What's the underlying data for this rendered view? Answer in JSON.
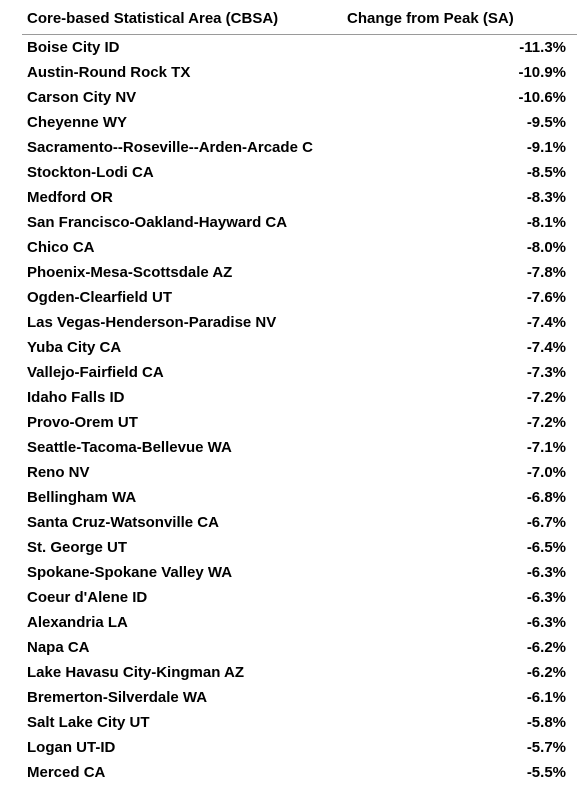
{
  "table": {
    "header": [
      "Core-based Statistical Area (CBSA)",
      "Change from Peak (SA)"
    ],
    "rows": [
      [
        "Boise City ID",
        "-11.3%"
      ],
      [
        "Austin-Round Rock TX",
        "-10.9%"
      ],
      [
        "Carson City NV",
        "-10.6%"
      ],
      [
        "Cheyenne WY",
        "-9.5%"
      ],
      [
        "Sacramento--Roseville--Arden-Arcade C",
        "-9.1%"
      ],
      [
        "Stockton-Lodi CA",
        "-8.5%"
      ],
      [
        "Medford OR",
        "-8.3%"
      ],
      [
        "San Francisco-Oakland-Hayward CA",
        "-8.1%"
      ],
      [
        "Chico CA",
        "-8.0%"
      ],
      [
        "Phoenix-Mesa-Scottsdale AZ",
        "-7.8%"
      ],
      [
        "Ogden-Clearfield UT",
        "-7.6%"
      ],
      [
        "Las Vegas-Henderson-Paradise NV",
        "-7.4%"
      ],
      [
        "Yuba City CA",
        "-7.4%"
      ],
      [
        "Vallejo-Fairfield CA",
        "-7.3%"
      ],
      [
        "Idaho Falls ID",
        "-7.2%"
      ],
      [
        "Provo-Orem UT",
        "-7.2%"
      ],
      [
        "Seattle-Tacoma-Bellevue WA",
        "-7.1%"
      ],
      [
        "Reno NV",
        "-7.0%"
      ],
      [
        "Bellingham WA",
        "-6.8%"
      ],
      [
        "Santa Cruz-Watsonville CA",
        "-6.7%"
      ],
      [
        "St. George UT",
        "-6.5%"
      ],
      [
        "Spokane-Spokane Valley WA",
        "-6.3%"
      ],
      [
        "Coeur d'Alene ID",
        "-6.3%"
      ],
      [
        "Alexandria LA",
        "-6.3%"
      ],
      [
        "Napa CA",
        "-6.2%"
      ],
      [
        "Lake Havasu City-Kingman AZ",
        "-6.2%"
      ],
      [
        "Bremerton-Silverdale WA",
        "-6.1%"
      ],
      [
        "Salt Lake City UT",
        "-5.8%"
      ],
      [
        "Logan UT-ID",
        "-5.7%"
      ],
      [
        "Merced CA",
        "-5.5%"
      ]
    ]
  }
}
